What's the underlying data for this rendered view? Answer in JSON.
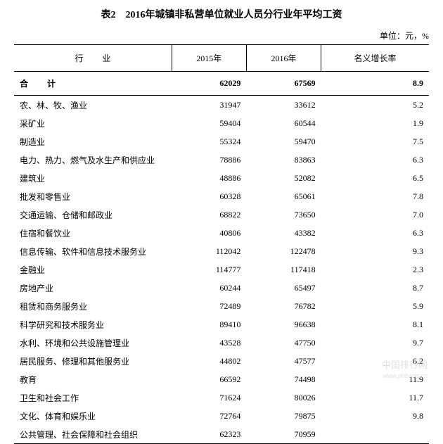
{
  "title": "表2　2016年城镇非私营单位就业人员分行业年平均工资",
  "unit": "单位：元，%",
  "headers": {
    "industry": "行 业",
    "col2015": "2015年",
    "col2016": "2016年",
    "rate": "名义增长率"
  },
  "total": {
    "label": "合 计",
    "v2015": "62029",
    "v2016": "67569",
    "rate": "8.9"
  },
  "rows": [
    {
      "industry": "农、林、牧、渔业",
      "v2015": "31947",
      "v2016": "33612",
      "rate": "5.2"
    },
    {
      "industry": "采矿业",
      "v2015": "59404",
      "v2016": "60544",
      "rate": "1.9"
    },
    {
      "industry": "制造业",
      "v2015": "55324",
      "v2016": "59470",
      "rate": "7.5"
    },
    {
      "industry": "电力、热力、燃气及水生产和供应业",
      "v2015": "78886",
      "v2016": "83863",
      "rate": "6.3"
    },
    {
      "industry": "建筑业",
      "v2015": "48886",
      "v2016": "52082",
      "rate": "6.5"
    },
    {
      "industry": "批发和零售业",
      "v2015": "60328",
      "v2016": "65061",
      "rate": "7.8"
    },
    {
      "industry": "交通运输、仓储和邮政业",
      "v2015": "68822",
      "v2016": "73650",
      "rate": "7.0"
    },
    {
      "industry": "住宿和餐饮业",
      "v2015": "40806",
      "v2016": "43382",
      "rate": "6.3"
    },
    {
      "industry": "信息传输、软件和信息技术服务业",
      "v2015": "112042",
      "v2016": "122478",
      "rate": "9.3"
    },
    {
      "industry": "金融业",
      "v2015": "114777",
      "v2016": "117418",
      "rate": "2.3"
    },
    {
      "industry": "房地产业",
      "v2015": "60244",
      "v2016": "65497",
      "rate": "8.7"
    },
    {
      "industry": "租赁和商务服务业",
      "v2015": "72489",
      "v2016": "76782",
      "rate": "5.9"
    },
    {
      "industry": "科学研究和技术服务业",
      "v2015": "89410",
      "v2016": "96638",
      "rate": "8.1"
    },
    {
      "industry": "水利、环境和公共设施管理业",
      "v2015": "43528",
      "v2016": "47750",
      "rate": "9.7"
    },
    {
      "industry": "居民服务、修理和其他服务业",
      "v2015": "44802",
      "v2016": "47577",
      "rate": "6.2"
    },
    {
      "industry": "教育",
      "v2015": "66592",
      "v2016": "74498",
      "rate": "11.9"
    },
    {
      "industry": "卫生和社会工作",
      "v2015": "71624",
      "v2016": "80026",
      "rate": "11.7"
    },
    {
      "industry": "文化、体育和娱乐业",
      "v2015": "72764",
      "v2016": "79875",
      "rate": "9.8"
    },
    {
      "industry": "公共管理、社会保障和社会组织",
      "v2015": "62323",
      "v2016": "70959",
      "rate": ""
    }
  ],
  "watermark": {
    "main": "中国排行网",
    "sub": "www.phbang.cn"
  }
}
